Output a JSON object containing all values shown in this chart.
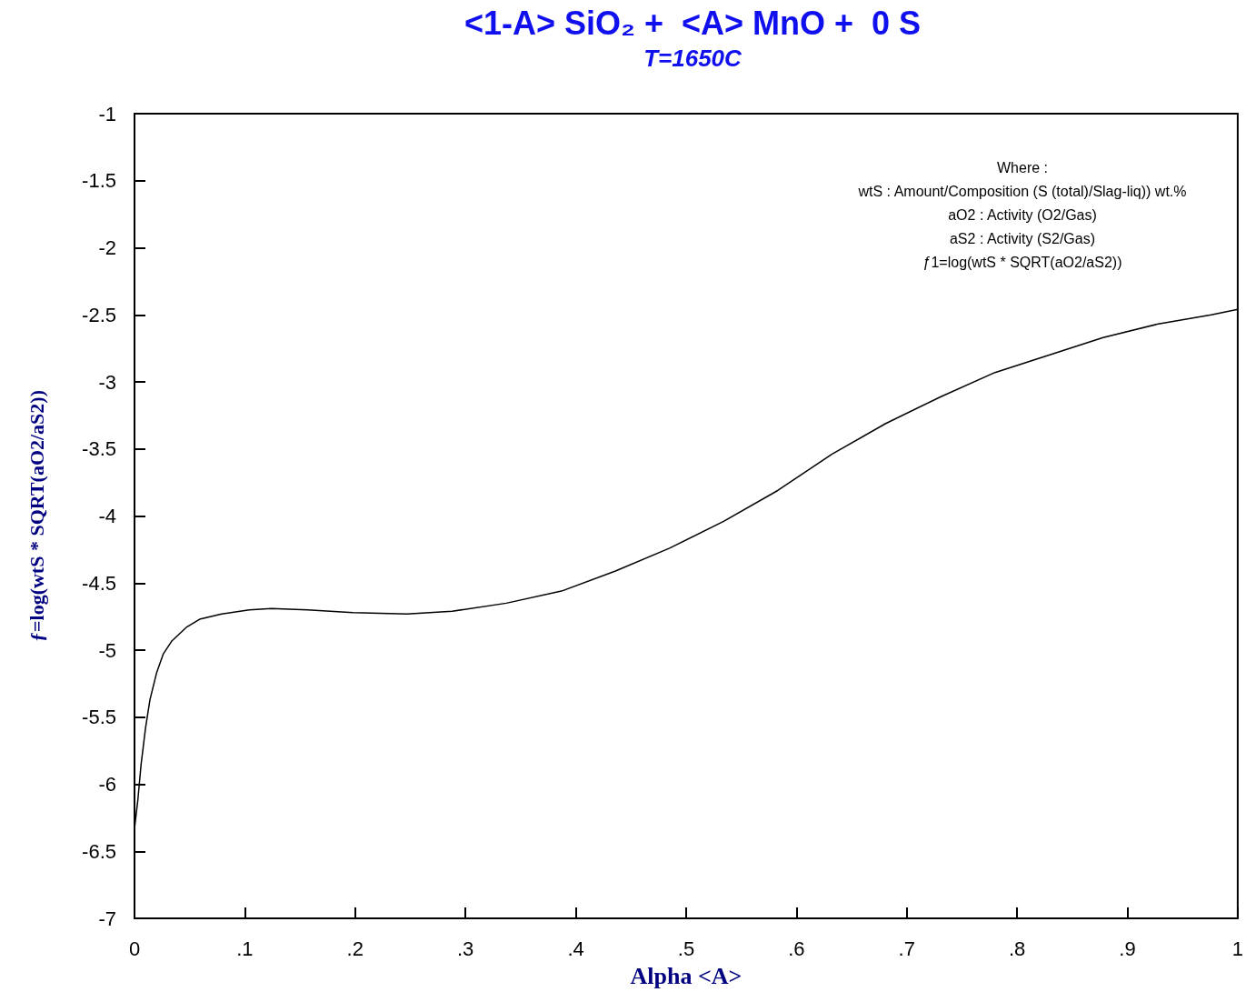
{
  "chart_data": {
    "type": "line",
    "title": "<1-A> SiO₂ +  <A> MnO +  0 S",
    "subtitle": "T=1650C",
    "xlabel": "Alpha <A>",
    "ylabel": "ƒ=log(wtS * SQRT(aO2/aS2))",
    "annotations": [
      "Where :",
      "wtS : Amount/Composition (S (total)/Slag-liq)) wt.%",
      "aO2 : Activity (O2/Gas)",
      "aS2 : Activity (S2/Gas)",
      "ƒ1=log(wtS * SQRT(aO2/aS2))"
    ],
    "series": [
      {
        "color": "#000000",
        "x": [
          0,
          0.003,
          0.006,
          0.01,
          0.014,
          0.02,
          0.026,
          0.034,
          0.047,
          0.059,
          0.079,
          0.104,
          0.124,
          0.157,
          0.198,
          0.247,
          0.288,
          0.337,
          0.387,
          0.436,
          0.485,
          0.534,
          0.583,
          0.632,
          0.681,
          0.731,
          0.78,
          0.829,
          0.878,
          0.927,
          0.976,
          1.0
        ],
        "values": [
          -6.33,
          -6.12,
          -5.85,
          -5.58,
          -5.37,
          -5.17,
          -5.03,
          -4.93,
          -4.83,
          -4.77,
          -4.73,
          -4.7,
          -4.69,
          -4.7,
          -4.72,
          -4.73,
          -4.71,
          -4.65,
          -4.56,
          -4.41,
          -4.24,
          -4.04,
          -3.81,
          -3.54,
          -3.31,
          -3.11,
          -2.93,
          -2.8,
          -2.67,
          -2.57,
          -2.5,
          -2.46
        ]
      }
    ],
    "xlim": [
      0,
      1
    ],
    "xticks": [
      0,
      {
        "value": 0.1,
        "label": ".1"
      },
      {
        "value": 0.2,
        "label": ".2"
      },
      {
        "value": 0.3,
        "label": ".3"
      },
      {
        "value": 0.4,
        "label": ".4"
      },
      {
        "value": 0.5,
        "label": ".5"
      },
      {
        "value": 0.6,
        "label": ".6"
      },
      {
        "value": 0.7,
        "label": ".7"
      },
      {
        "value": 0.8,
        "label": ".8"
      },
      {
        "value": 0.9,
        "label": ".9"
      },
      1
    ],
    "ylim": [
      -7,
      -1
    ],
    "yticks": [
      -7,
      -6.5,
      -6,
      -5.5,
      -5,
      -4.5,
      -4,
      -3.5,
      -3,
      -2.5,
      -2,
      -1.5,
      -1
    ],
    "grid": false,
    "marker": "none",
    "line_style": "solid"
  }
}
